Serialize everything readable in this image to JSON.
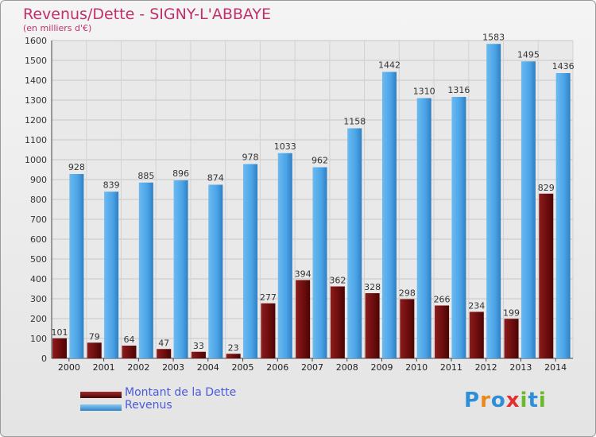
{
  "header": {
    "title": "Revenus/Dette - SIGNY-L'ABBAYE",
    "subtitle": "(en milliers d'€)"
  },
  "legend": [
    {
      "label": "Montant de la Dette",
      "color": "#7a1010"
    },
    {
      "label": "Revenus",
      "color": "#4aa3e6"
    }
  ],
  "logo": {
    "text": "Proxiti"
  },
  "chart_data": {
    "type": "bar",
    "title": "Revenus/Dette - SIGNY-L'ABBAYE",
    "subtitle": "(en milliers d'€)",
    "categories": [
      "2000",
      "2001",
      "2002",
      "2003",
      "2004",
      "2005",
      "2006",
      "2007",
      "2008",
      "2009",
      "2010",
      "2011",
      "2012",
      "2013",
      "2014"
    ],
    "series": [
      {
        "name": "Montant de la Dette",
        "color": "#7a1010",
        "values": [
          101,
          79,
          64,
          47,
          33,
          23,
          277,
          394,
          362,
          328,
          298,
          266,
          234,
          199,
          829
        ]
      },
      {
        "name": "Revenus",
        "color": "#4aa3e6",
        "values": [
          928,
          839,
          885,
          896,
          874,
          978,
          1033,
          962,
          1158,
          1442,
          1310,
          1316,
          1583,
          1495,
          1436
        ]
      }
    ],
    "ylim": [
      0,
      1600
    ],
    "yticks": [
      0,
      100,
      200,
      300,
      400,
      500,
      600,
      700,
      800,
      900,
      1000,
      1100,
      1200,
      1300,
      1400,
      1500,
      1600
    ],
    "grid": true,
    "legend_position": "bottom-left"
  }
}
